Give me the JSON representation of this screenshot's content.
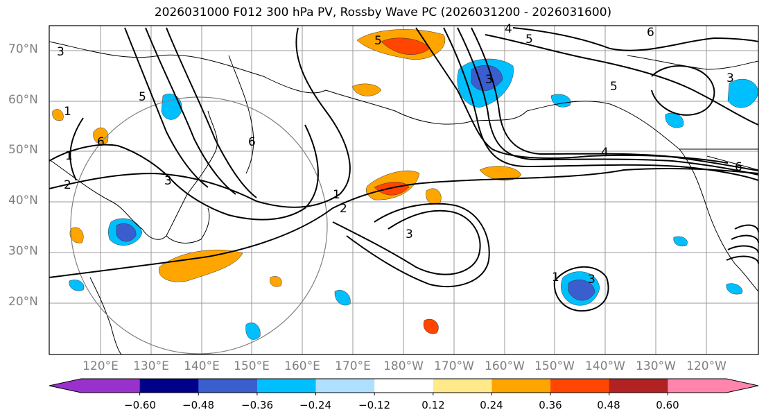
{
  "title": "2026031000 F012 300 hPa PV, Rossby Wave PC (2026031200 - 2026031600)",
  "lat_labels": [
    "70°N",
    "60°N",
    "50°N",
    "40°N",
    "30°N",
    "20°N"
  ],
  "lon_labels": [
    "120°E",
    "130°E",
    "140°E",
    "150°E",
    "160°E",
    "170°E",
    "180°W",
    "170°W",
    "160°W",
    "150°W",
    "140°W",
    "130°W",
    "120°W"
  ],
  "colorbar": {
    "ticks": [
      "−0.60",
      "−0.48",
      "−0.36",
      "−0.24",
      "−0.12",
      "0.12",
      "0.24",
      "0.36",
      "0.48",
      "0.60"
    ],
    "colors": [
      "#9932cc",
      "#00008b",
      "#3a5ecd",
      "#00bfff",
      "#b0e0ff",
      "#ffffff",
      "#ffe98a",
      "#ffa500",
      "#ff4500",
      "#b22222",
      "#ff85ad"
    ]
  },
  "contour_labels": [
    "1",
    "2",
    "3",
    "4",
    "5",
    "6"
  ]
}
